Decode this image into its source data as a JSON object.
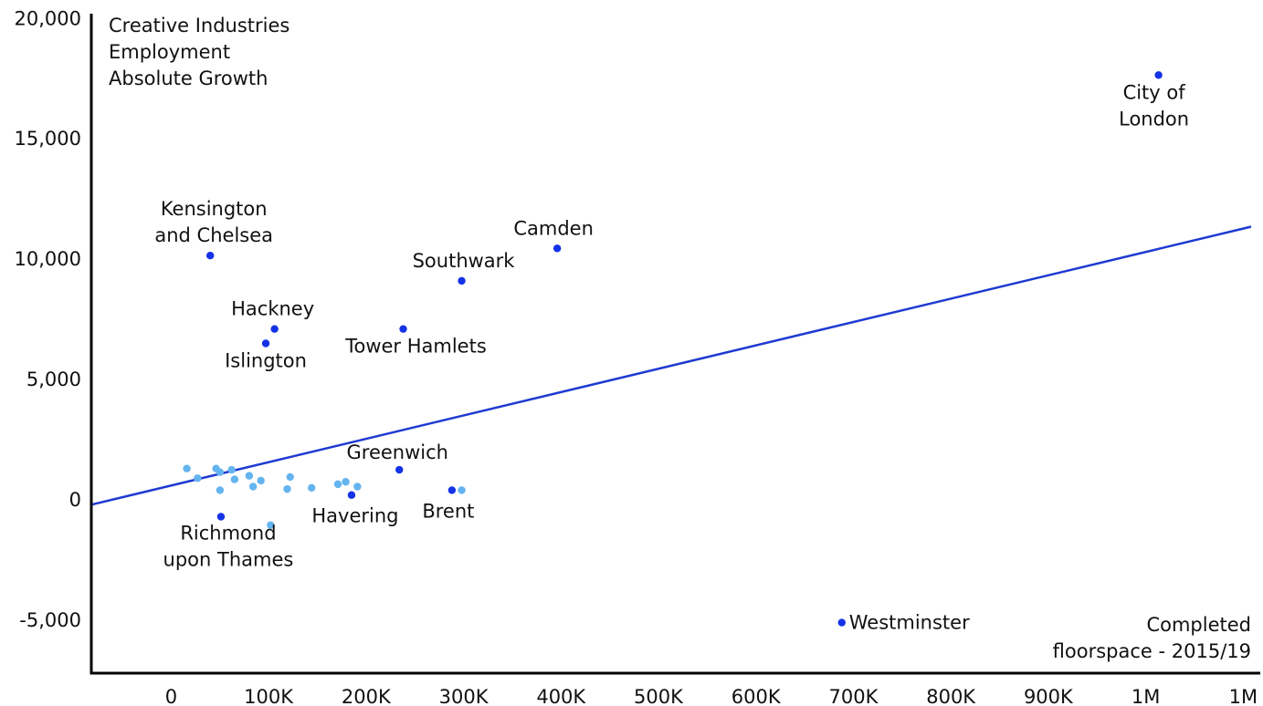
{
  "chart_data": {
    "type": "scatter",
    "title": "",
    "ylabel_lines": [
      "Creative Industries",
      "Employment",
      "Absolute Growth"
    ],
    "xlabel_lines": [
      "Completed",
      "floorspace - 2015/19"
    ],
    "x_tick_labels": [
      "0",
      "100K",
      "200K",
      "300K",
      "400K",
      "500K",
      "600K",
      "700K",
      "800K",
      "900K",
      "1M",
      "1M"
    ],
    "x_tick_values": [
      0,
      100000,
      200000,
      300000,
      400000,
      500000,
      600000,
      700000,
      800000,
      900000,
      1000000,
      1100000
    ],
    "y_tick_labels": [
      "20,000",
      "15,000",
      "10,000",
      "5,000",
      "0",
      "-5,000"
    ],
    "y_tick_values": [
      20000,
      15000,
      10000,
      5000,
      0,
      -5000
    ],
    "xlim": [
      -80000,
      1110000
    ],
    "ylim": [
      -7200,
      20200
    ],
    "grid": false,
    "colors": {
      "highlight": "#1432e6",
      "other": "#64b4f0",
      "trend": "#1f3ad2",
      "axis": "#000000"
    },
    "trend_line": {
      "x": [
        -80000,
        1110000
      ],
      "y": [
        -200,
        11350
      ]
    },
    "labeled_points": [
      {
        "name": "City of London",
        "label_lines": [
          "City of",
          "London"
        ],
        "x": 1015000,
        "y": 17650
      },
      {
        "name": "Camden",
        "label_lines": [
          "Camden"
        ],
        "x": 398000,
        "y": 10450
      },
      {
        "name": "Kensington and Chelsea",
        "label_lines": [
          "Kensington",
          "and Chelsea"
        ],
        "x": 42000,
        "y": 10150
      },
      {
        "name": "Southwark",
        "label_lines": [
          "Southwark"
        ],
        "x": 300000,
        "y": 9100
      },
      {
        "name": "Hackney",
        "label_lines": [
          "Hackney"
        ],
        "x": 108000,
        "y": 7100
      },
      {
        "name": "Tower Hamlets",
        "label_lines": [
          "Tower Hamlets"
        ],
        "x": 240000,
        "y": 7100
      },
      {
        "name": "Islington",
        "label_lines": [
          "Islington"
        ],
        "x": 99000,
        "y": 6500
      },
      {
        "name": "Greenwich",
        "label_lines": [
          "Greenwich"
        ],
        "x": 236000,
        "y": 1250
      },
      {
        "name": "Brent",
        "label_lines": [
          "Brent"
        ],
        "x": 290000,
        "y": 400
      },
      {
        "name": "Havering",
        "label_lines": [
          "Havering"
        ],
        "x": 187000,
        "y": 200
      },
      {
        "name": "Richmond upon Thames",
        "label_lines": [
          "Richmond",
          "upon Thames"
        ],
        "x": 53000,
        "y": -700
      },
      {
        "name": "Westminster",
        "label_lines": [
          "Westminster"
        ],
        "x": 690000,
        "y": -5100
      }
    ],
    "other_points": [
      {
        "x": 18000,
        "y": 1300
      },
      {
        "x": 29000,
        "y": 900
      },
      {
        "x": 48000,
        "y": 1300
      },
      {
        "x": 52000,
        "y": 1150
      },
      {
        "x": 64000,
        "y": 1250
      },
      {
        "x": 67000,
        "y": 850
      },
      {
        "x": 52000,
        "y": 400
      },
      {
        "x": 82000,
        "y": 1000
      },
      {
        "x": 94000,
        "y": 800
      },
      {
        "x": 86000,
        "y": 550
      },
      {
        "x": 124000,
        "y": 950
      },
      {
        "x": 121000,
        "y": 450
      },
      {
        "x": 146000,
        "y": 500
      },
      {
        "x": 173000,
        "y": 650
      },
      {
        "x": 181000,
        "y": 750
      },
      {
        "x": 193000,
        "y": 550
      },
      {
        "x": 300000,
        "y": 400
      },
      {
        "x": 104000,
        "y": -1050
      }
    ]
  }
}
